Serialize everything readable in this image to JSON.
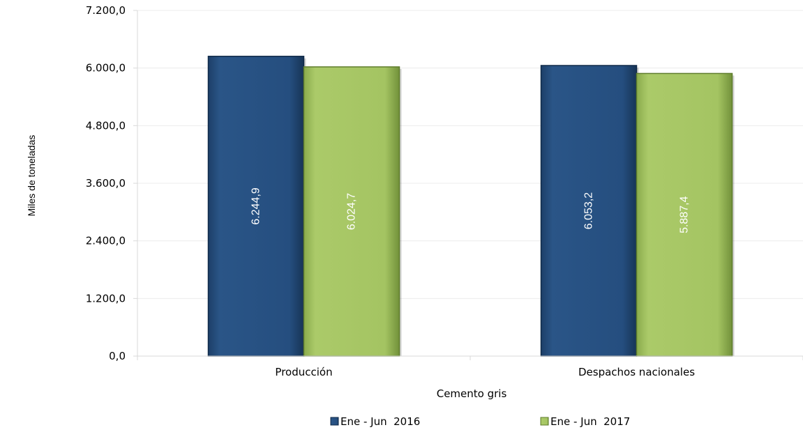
{
  "chart_data": {
    "type": "bar",
    "categories": [
      "Producción",
      "Despachos nacionales"
    ],
    "series": [
      {
        "name": "Ene - Jun  2016",
        "values": [
          6244.9,
          6053.2
        ],
        "labels": [
          "6.244,9",
          "6.053,2"
        ],
        "color": "#254E7F"
      },
      {
        "name": "Ene - Jun  2017",
        "values": [
          6024.7,
          5887.4
        ],
        "labels": [
          "6.024,7",
          "5.887,4"
        ],
        "color": "#A4C462"
      }
    ],
    "xlabel": "Cemento gris",
    "ylabel": "Miles de toneladas",
    "ylim": [
      0,
      7200
    ],
    "yticks": [
      0,
      1200,
      2400,
      3600,
      4800,
      6000,
      7200
    ],
    "ytick_labels": [
      "0,0",
      "1.200,0",
      "2.400,0",
      "3.600,0",
      "4.800,0",
      "6.000,0",
      "7.200,0"
    ],
    "grid": true,
    "legend": "bottom"
  }
}
